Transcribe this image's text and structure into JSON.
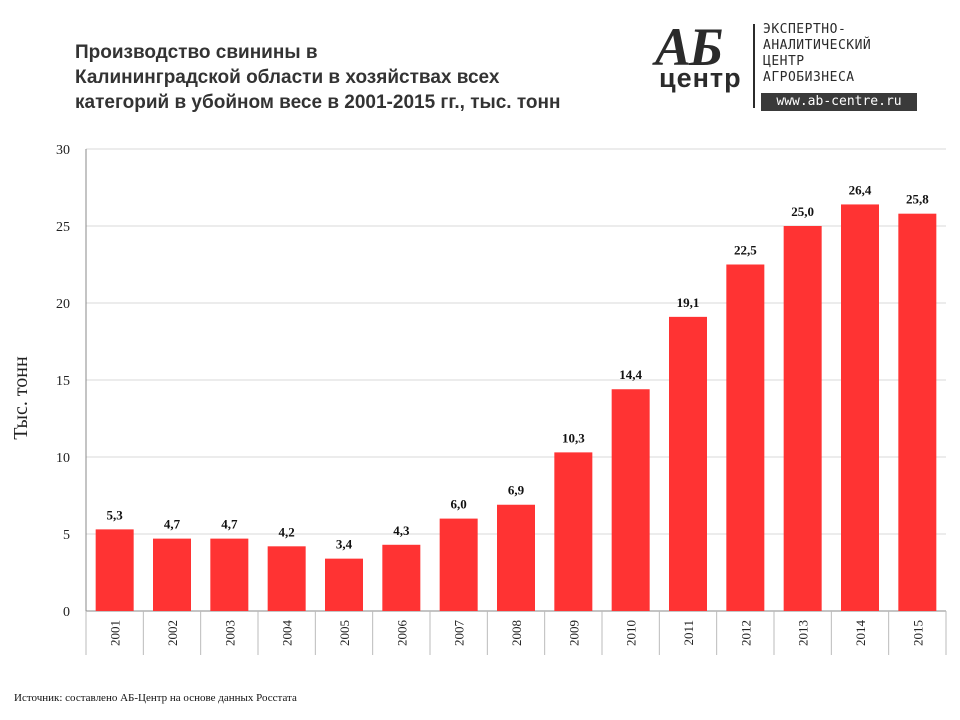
{
  "title_lines": [
    "Производство свинины в",
    "Калининградской области в хозяйствах всех",
    "категорий в убойном весе в 2001-2015 гг., тыс. тонн"
  ],
  "logo": {
    "ab": "АБ",
    "centr": "центр",
    "lines": [
      "ЭКСПЕРТНО-",
      "АНАЛИТИЧЕСКИЙ",
      "ЦЕНТР",
      "АГРОБИЗНЕСА"
    ],
    "url": "www.ab-centre.ru"
  },
  "source": "Источник: составлено АБ-Центр на основе данных Росстата",
  "chart_data": {
    "type": "bar",
    "ylabel": "Тыс. тонн",
    "ylim": [
      0,
      30
    ],
    "yticks": [
      0,
      5,
      10,
      15,
      20,
      25,
      30
    ],
    "grid": true,
    "bar_color": "#ff3333",
    "categories": [
      "2001",
      "2002",
      "2003",
      "2004",
      "2005",
      "2006",
      "2007",
      "2008",
      "2009",
      "2010",
      "2011",
      "2012",
      "2013",
      "2014",
      "2015"
    ],
    "values": [
      5.3,
      4.7,
      4.7,
      4.2,
      3.4,
      4.3,
      6.0,
      6.9,
      10.3,
      14.4,
      19.1,
      22.5,
      25.0,
      26.4,
      25.8
    ],
    "value_labels": [
      "5,3",
      "4,7",
      "4,7",
      "4,2",
      "3,4",
      "4,3",
      "6,0",
      "6,9",
      "10,3",
      "14,4",
      "19,1",
      "22,5",
      "25,0",
      "26,4",
      "25,8"
    ]
  }
}
